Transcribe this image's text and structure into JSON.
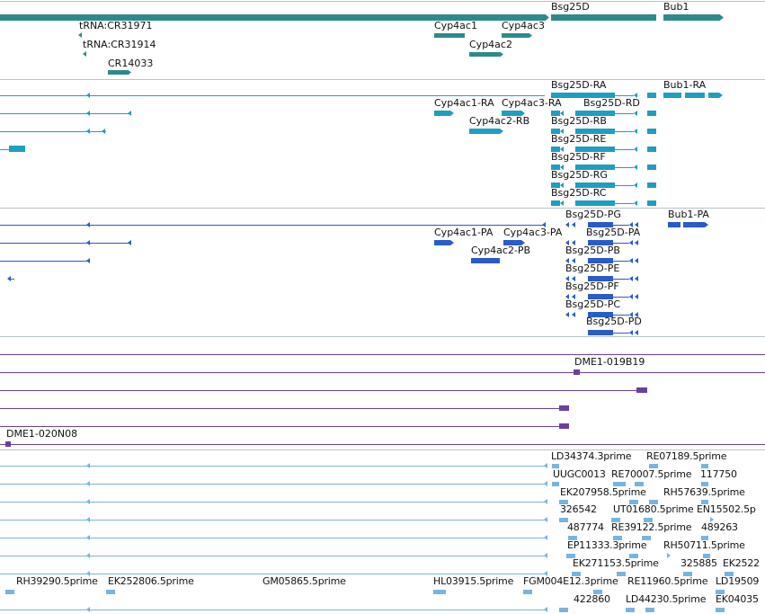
{
  "colors": {
    "gene": "#2e8a8a",
    "transcript": "#1e9ec0",
    "protein": "#2a5cc8",
    "clone": "#6a3fa0",
    "est": "#78b4e0",
    "divider": "#b8c4c8"
  },
  "tracks": {
    "genes": {
      "labels": [
        "Bsg25D",
        "Bub1",
        "tRNA:CR31971",
        "Cyp4ac1",
        "Cyp4ac3",
        "tRNA:CR31914",
        "Cyp4ac2",
        "CR14033"
      ]
    },
    "transcripts": {
      "labels": [
        "Bsg25D-RA",
        "Bub1-RA",
        "Cyp4ac1-RA",
        "Cyp4ac3-RA",
        "Bsg25D-RD",
        "Cyp4ac2-RB",
        "Bsg25D-RB",
        "Bsg25D-RE",
        "Bsg25D-RF",
        "Bsg25D-RG",
        "Bsg25D-RC"
      ]
    },
    "proteins": {
      "labels": [
        "Bsg25D-PG",
        "Bub1-PA",
        "Cyp4ac1-PA",
        "Cyp4ac3-PA",
        "Bsg25D-PA",
        "Cyp4ac2-PB",
        "Bsg25D-PB",
        "Bsg25D-PE",
        "Bsg25D-PF",
        "Bsg25D-PC",
        "Bsg25D-PD"
      ]
    },
    "clones": {
      "labels": [
        "DME1-019B19",
        "DME1-020N08"
      ]
    },
    "ests": {
      "labels": [
        "LD34374.3prime",
        "RE07189.5prime",
        "UUGC0013",
        "RE70007.5prime",
        "117750",
        "EK207958.5prime",
        "RH57639.5prime",
        "326542",
        "UT01680.5prime",
        "EN15502.5p",
        "487774",
        "RE39122.5prime",
        "489263",
        "EP11333.3prime",
        "RH50711.5prime",
        "EK271153.5prime",
        "325885",
        "EK2522",
        "RH39290.5prime",
        "EK252806.5prime",
        "GM05865.5prime",
        "HL03915.5prime",
        "FGM004E12.3prime",
        "RE11960.5prime",
        "LD19509",
        "422860",
        "LD44230.5prime",
        "EK04035"
      ]
    }
  }
}
